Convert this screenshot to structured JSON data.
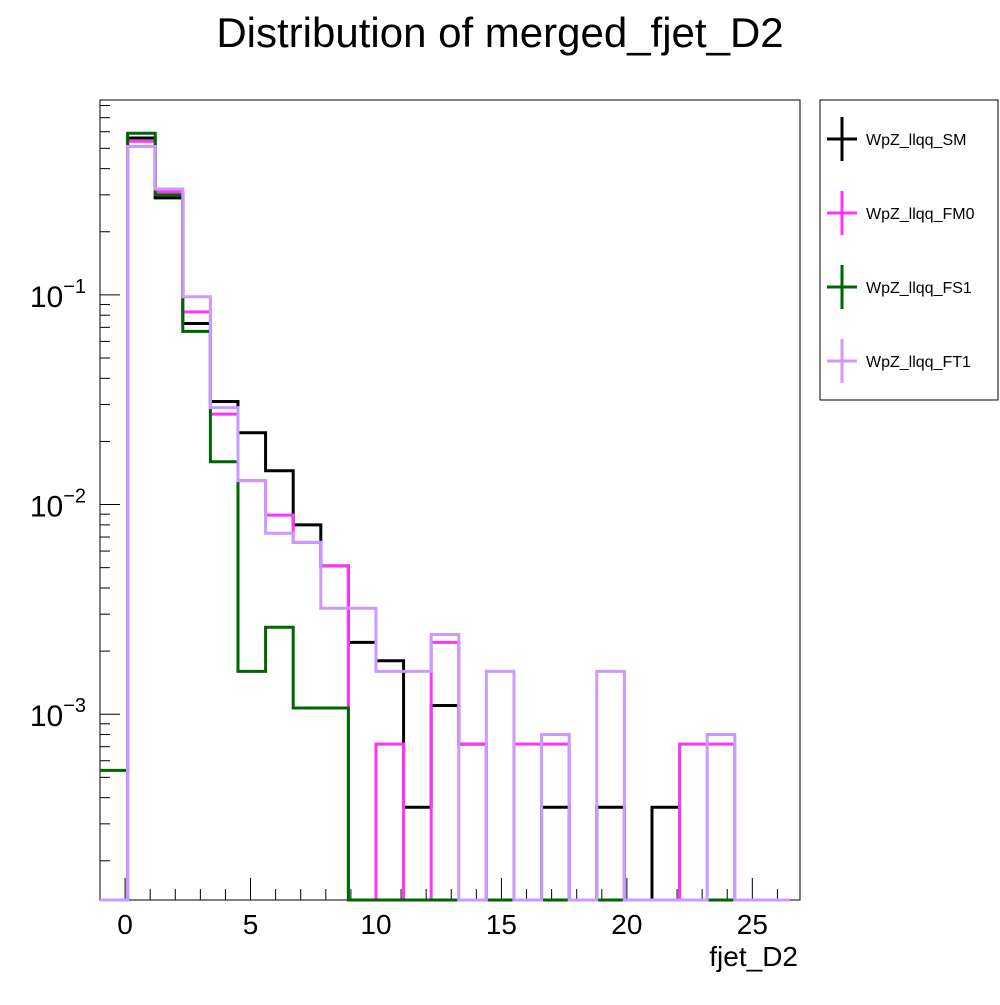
{
  "chart_data": {
    "type": "histogram",
    "title": "Distribution of merged_fjet_D2",
    "xlabel": "fjet_D2",
    "ylabel": "",
    "xlim": [
      -1.0,
      26.9
    ],
    "ylim": [
      0.00013,
      0.85
    ],
    "yscale": "log",
    "x_ticks": [
      0,
      5,
      10,
      15,
      20,
      25
    ],
    "x_tick_labels": [
      "0",
      "5",
      "10",
      "15",
      "20",
      "25"
    ],
    "y_ticks": [
      0.1,
      0.01,
      0.001
    ],
    "y_tick_labels": [
      {
        "base": "10",
        "exp": "−1"
      },
      {
        "base": "10",
        "exp": "−2"
      },
      {
        "base": "10",
        "exp": "−3"
      }
    ],
    "grid": false,
    "legend_position": "outside-right-top",
    "bin_edges": [
      -1.0,
      0.1,
      1.2,
      2.3,
      3.4,
      4.5,
      5.6,
      6.7,
      7.8,
      8.9,
      10.0,
      11.1,
      12.2,
      13.3,
      14.4,
      15.5,
      16.6,
      17.7,
      18.8,
      19.9,
      21.0,
      22.1,
      23.2,
      24.3,
      25.4,
      26.5
    ],
    "series": [
      {
        "name": "WpZ_llqq_SM",
        "color": "#000000",
        "values": [
          0,
          0.56,
          0.29,
          0.073,
          0.031,
          0.022,
          0.0145,
          0.008,
          0.0051,
          0.0022,
          0.0018,
          0.00036,
          0.0011,
          0.00072,
          0,
          0,
          0.00036,
          0,
          0.00036,
          0,
          0.00036,
          0,
          0,
          0,
          0
        ]
      },
      {
        "name": "WpZ_llqq_FM0",
        "color": "#ff33ff",
        "values": [
          0,
          0.54,
          0.31,
          0.083,
          0.027,
          0.013,
          0.0089,
          0.0066,
          0.0051,
          0,
          0.00072,
          0,
          0.0022,
          0.00072,
          0,
          0.00072,
          0.00072,
          0,
          0,
          0,
          0,
          0.00072,
          0.00072,
          0,
          0
        ]
      },
      {
        "name": "WpZ_llqq_FS1",
        "color": "#006600",
        "values": [
          0.00054,
          0.59,
          0.3,
          0.067,
          0.016,
          0.0016,
          0.0026,
          0.00107,
          0.00107,
          0,
          0,
          0,
          0,
          0,
          0,
          0,
          0,
          0,
          0,
          0,
          0,
          0,
          0,
          0,
          0
        ]
      },
      {
        "name": "WpZ_llqq_FT1",
        "color": "#cc99ff",
        "values": [
          0,
          0.51,
          0.32,
          0.098,
          0.029,
          0.013,
          0.0073,
          0.0066,
          0.0032,
          0.0032,
          0.0016,
          0.0016,
          0.0024,
          0,
          0.0016,
          0,
          0.0008,
          0,
          0.0016,
          0,
          0,
          0,
          0.0008,
          0,
          0
        ]
      }
    ]
  }
}
